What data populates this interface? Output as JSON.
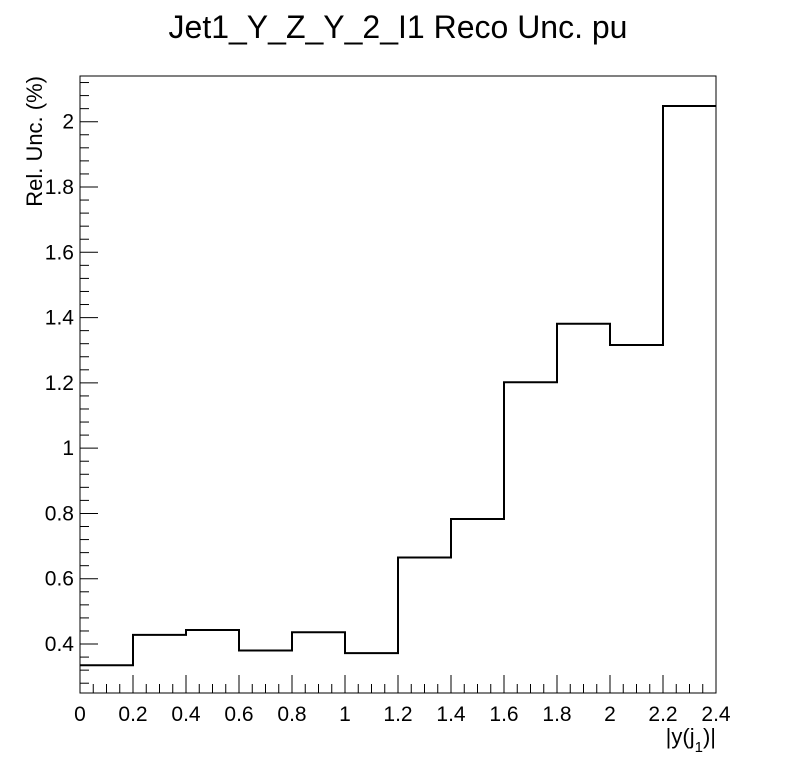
{
  "chart_data": {
    "type": "bar",
    "style": "step-histogram",
    "title": "Jet1_Y_Z_Y_2_I1 Reco Unc. pu",
    "xlabel": "|y(j",
    "xlabel_sub": "1",
    "xlabel_close": ")|",
    "ylabel": "Rel. Unc. (%)",
    "xlim": [
      0,
      2.4
    ],
    "ylim": [
      0.25,
      2.14
    ],
    "x_ticks": [
      "0",
      "0.2",
      "0.4",
      "0.6",
      "0.8",
      "1",
      "1.2",
      "1.4",
      "1.6",
      "1.8",
      "2",
      "2.2",
      "2.4"
    ],
    "y_ticks": [
      "0.4",
      "0.6",
      "0.8",
      "1",
      "1.2",
      "1.4",
      "1.6",
      "1.8",
      "2"
    ],
    "bin_edges": [
      0,
      0.2,
      0.4,
      0.6,
      0.8,
      1.0,
      1.2,
      1.4,
      1.6,
      1.8,
      2.0,
      2.2,
      2.4
    ],
    "values": [
      0.335,
      0.428,
      0.443,
      0.38,
      0.436,
      0.372,
      0.665,
      0.783,
      1.202,
      1.381,
      1.316,
      2.048
    ],
    "grid": false,
    "line_color": "#000000"
  }
}
